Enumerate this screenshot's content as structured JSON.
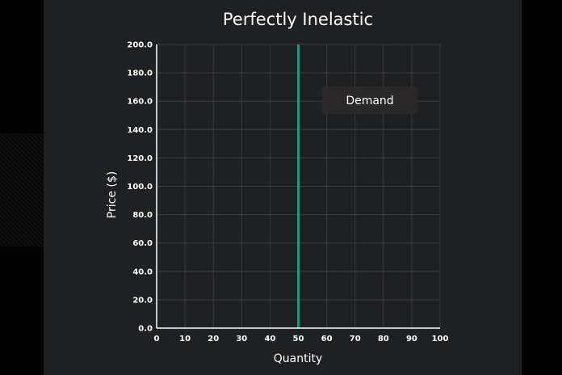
{
  "chart_data": {
    "type": "line",
    "title": "Perfectly Inelastic",
    "xlabel": "Quantity",
    "ylabel": "Price ($)",
    "xlim": [
      0,
      100
    ],
    "ylim": [
      0,
      200
    ],
    "x_ticks": [
      "0",
      "10",
      "20",
      "30",
      "40",
      "50",
      "60",
      "70",
      "80",
      "90",
      "100"
    ],
    "y_ticks": [
      "0.0",
      "20.0",
      "40.0",
      "60.0",
      "80.0",
      "100.0",
      "120.0",
      "140.0",
      "160.0",
      "180.0",
      "200.0"
    ],
    "grid": true,
    "legend_position": "top-right",
    "series": [
      {
        "name": "Demand",
        "color": "#1a9a78",
        "x": [
          50,
          50
        ],
        "y": [
          0,
          200
        ]
      }
    ]
  },
  "colors": {
    "background": "#000000",
    "panel": "#1f2022",
    "grid": "#3a3b3e",
    "axis": "#ffffff",
    "legend_box": "#2a2828"
  }
}
